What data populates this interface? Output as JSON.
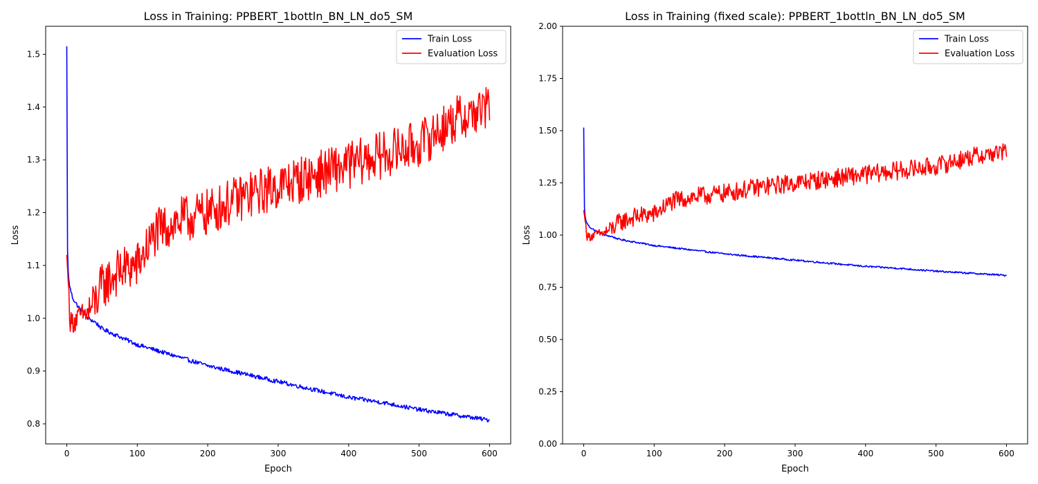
{
  "colors": {
    "train": "#0000ff",
    "eval": "#ff0000"
  },
  "chart_data": [
    {
      "type": "line",
      "title": "Loss in Training: PPBERT_1bottln_BN_LN_do5_SM",
      "xlabel": "Epoch",
      "ylabel": "Loss",
      "xlim": [
        -30,
        630
      ],
      "ylim": [
        0.762,
        1.553
      ],
      "xticks": [
        0,
        100,
        200,
        300,
        400,
        500,
        600
      ],
      "xtick_labels": [
        "0",
        "100",
        "200",
        "300",
        "400",
        "500",
        "600"
      ],
      "yticks": [
        0.8,
        0.9,
        1.0,
        1.1,
        1.2,
        1.3,
        1.4,
        1.5
      ],
      "ytick_labels": [
        "0.8",
        "0.9",
        "1.0",
        "1.1",
        "1.2",
        "1.3",
        "1.4",
        "1.5"
      ],
      "grid": false,
      "legend": "top-right",
      "series": [
        {
          "name": "Train Loss",
          "color": "#0000ff",
          "x": [
            0,
            1,
            2,
            3,
            5,
            8,
            12,
            20,
            30,
            40,
            50,
            75,
            100,
            150,
            200,
            250,
            300,
            350,
            400,
            450,
            500,
            550,
            600
          ],
          "y": [
            1.515,
            1.13,
            1.09,
            1.07,
            1.055,
            1.04,
            1.03,
            1.015,
            1.0,
            0.993,
            0.98,
            0.965,
            0.95,
            0.93,
            0.91,
            0.895,
            0.88,
            0.865,
            0.85,
            0.84,
            0.827,
            0.817,
            0.807
          ]
        },
        {
          "name": "Evaluation Loss",
          "color": "#ff0000",
          "x": [
            0,
            5,
            10,
            20,
            30,
            40,
            50,
            75,
            100,
            125,
            150,
            175,
            200,
            250,
            300,
            350,
            400,
            450,
            500,
            550,
            600
          ],
          "y": [
            1.12,
            0.99,
            0.995,
            1.005,
            1.01,
            1.03,
            1.06,
            1.09,
            1.1,
            1.16,
            1.18,
            1.19,
            1.2,
            1.23,
            1.25,
            1.27,
            1.29,
            1.31,
            1.33,
            1.375,
            1.4
          ]
        }
      ]
    },
    {
      "type": "line",
      "title": "Loss in Training (fixed scale): PPBERT_1bottln_BN_LN_do5_SM",
      "xlabel": "Epoch",
      "ylabel": "Loss",
      "xlim": [
        -30,
        630
      ],
      "ylim": [
        0.0,
        2.0
      ],
      "xticks": [
        0,
        100,
        200,
        300,
        400,
        500,
        600
      ],
      "xtick_labels": [
        "0",
        "100",
        "200",
        "300",
        "400",
        "500",
        "600"
      ],
      "yticks": [
        0.0,
        0.25,
        0.5,
        0.75,
        1.0,
        1.25,
        1.5,
        1.75,
        2.0
      ],
      "ytick_labels": [
        "0.00",
        "0.25",
        "0.50",
        "0.75",
        "1.00",
        "1.25",
        "1.50",
        "1.75",
        "2.00"
      ],
      "grid": false,
      "legend": "top-right",
      "series": [
        {
          "name": "Train Loss",
          "color": "#0000ff",
          "x": [
            0,
            1,
            2,
            3,
            5,
            8,
            12,
            20,
            30,
            40,
            50,
            75,
            100,
            150,
            200,
            250,
            300,
            350,
            400,
            450,
            500,
            550,
            600
          ],
          "y": [
            1.515,
            1.13,
            1.09,
            1.07,
            1.055,
            1.04,
            1.03,
            1.015,
            1.0,
            0.993,
            0.98,
            0.965,
            0.95,
            0.93,
            0.91,
            0.895,
            0.88,
            0.865,
            0.85,
            0.84,
            0.827,
            0.817,
            0.807
          ]
        },
        {
          "name": "Evaluation Loss",
          "color": "#ff0000",
          "x": [
            0,
            5,
            10,
            20,
            30,
            40,
            50,
            75,
            100,
            125,
            150,
            175,
            200,
            250,
            300,
            350,
            400,
            450,
            500,
            550,
            600
          ],
          "y": [
            1.12,
            0.99,
            0.995,
            1.005,
            1.01,
            1.03,
            1.06,
            1.09,
            1.1,
            1.16,
            1.18,
            1.19,
            1.2,
            1.23,
            1.25,
            1.27,
            1.29,
            1.31,
            1.33,
            1.375,
            1.4
          ]
        }
      ]
    }
  ]
}
